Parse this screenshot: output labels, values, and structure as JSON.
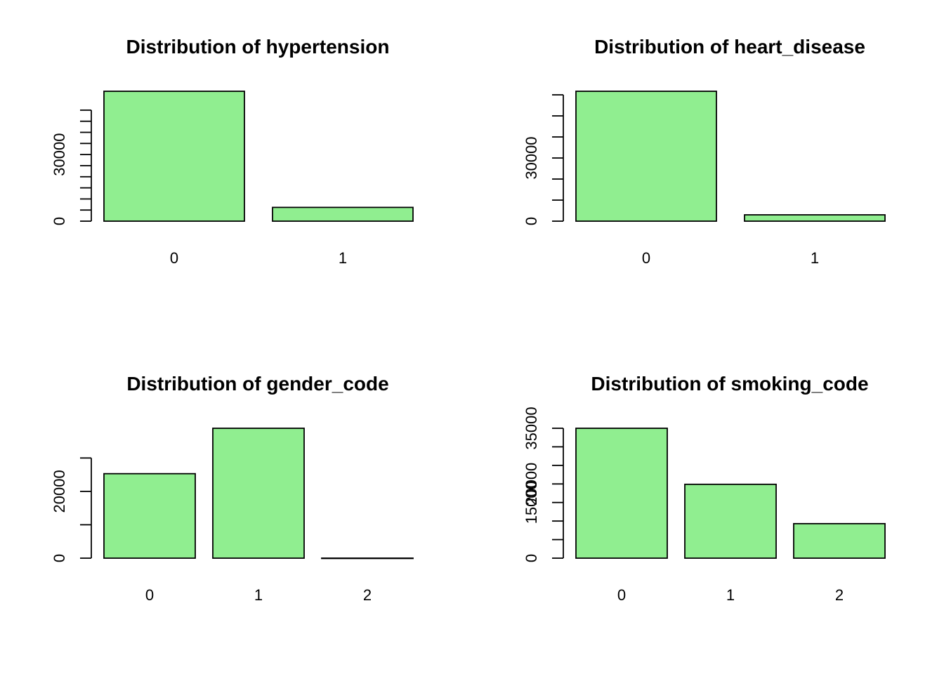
{
  "chart_data": [
    {
      "type": "bar",
      "title": "Distribution of hypertension",
      "categories": [
        "0",
        "1"
      ],
      "values": [
        58500,
        6200
      ],
      "ylim": [
        0,
        60000
      ],
      "yticks": [
        0,
        5000,
        10000,
        15000,
        20000,
        25000,
        30000,
        35000,
        40000,
        45000,
        50000
      ],
      "ytick_labels": [
        {
          "value": 0,
          "label": "0"
        },
        {
          "value": 30000,
          "label": "30000"
        }
      ],
      "bar_color": "#90EE90",
      "grid": false,
      "legend": "none",
      "xlabel": "",
      "ylabel": ""
    },
    {
      "type": "bar",
      "title": "Distribution of heart_disease",
      "categories": [
        "0",
        "1"
      ],
      "values": [
        61700,
        3000
      ],
      "ylim": [
        0,
        63000
      ],
      "yticks": [
        0,
        10000,
        20000,
        30000,
        40000,
        50000,
        60000
      ],
      "ytick_labels": [
        {
          "value": 0,
          "label": "0"
        },
        {
          "value": 30000,
          "label": "30000"
        }
      ],
      "bar_color": "#90EE90",
      "grid": false,
      "legend": "none",
      "xlabel": "",
      "ylabel": ""
    },
    {
      "type": "bar",
      "title": "Distribution of gender_code",
      "categories": [
        "0",
        "1",
        "2"
      ],
      "values": [
        25300,
        38900,
        10
      ],
      "ylim": [
        0,
        40000
      ],
      "yticks": [
        0,
        10000,
        20000,
        30000
      ],
      "ytick_labels": [
        {
          "value": 0,
          "label": "0"
        },
        {
          "value": 20000,
          "label": "20000"
        }
      ],
      "bar_color": "#90EE90",
      "grid": false,
      "legend": "none",
      "xlabel": "",
      "ylabel": ""
    },
    {
      "type": "bar",
      "title": "Distribution of smoking_code",
      "categories": [
        "0",
        "1",
        "2"
      ],
      "values": [
        35000,
        19900,
        9300
      ],
      "ylim": [
        0,
        35000
      ],
      "yticks": [
        0,
        5000,
        10000,
        15000,
        20000,
        25000,
        30000,
        35000
      ],
      "ytick_labels": [
        {
          "value": 0,
          "label": "0"
        },
        {
          "value": 15000,
          "label": "15000"
        },
        {
          "value": 20000,
          "label": "20000"
        },
        {
          "value": 35000,
          "label": "35000"
        }
      ],
      "bar_color": "#90EE90",
      "grid": false,
      "legend": "none",
      "xlabel": "",
      "ylabel": ""
    }
  ]
}
